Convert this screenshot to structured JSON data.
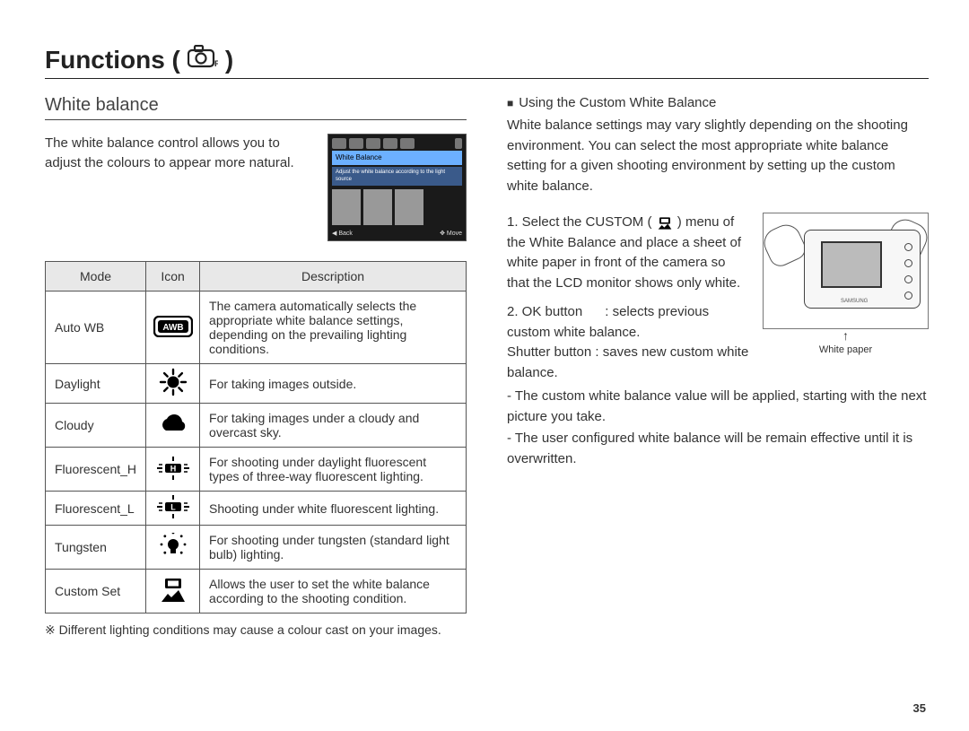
{
  "page": {
    "title": "Functions (",
    "title_close": ")",
    "number": "35"
  },
  "section": {
    "title": "White balance",
    "intro": "The white balance control allows you to adjust the colours to appear more natural.",
    "screenshot": {
      "header_label": "White Balance",
      "hint": "Adjust the white balance according to the light source",
      "back": "Back",
      "move": "Move"
    },
    "table": {
      "headers": {
        "mode": "Mode",
        "icon": "Icon",
        "desc": "Description"
      },
      "rows": [
        {
          "mode": "Auto WB",
          "icon": "awb",
          "desc": "The camera automatically selects the appropriate white balance settings, depending on the prevailing lighting conditions."
        },
        {
          "mode": "Daylight",
          "icon": "sun",
          "desc": "For taking images outside."
        },
        {
          "mode": "Cloudy",
          "icon": "cloud",
          "desc": "For taking images under a cloudy and overcast sky."
        },
        {
          "mode": "Fluorescent_H",
          "icon": "fluoH",
          "desc": "For shooting under daylight fluorescent types of three-way fluorescent lighting."
        },
        {
          "mode": "Fluorescent_L",
          "icon": "fluoL",
          "desc": "Shooting under white fluorescent lighting."
        },
        {
          "mode": "Tungsten",
          "icon": "bulb",
          "desc": "For shooting under tungsten (standard light bulb) lighting."
        },
        {
          "mode": "Custom Set",
          "icon": "custom",
          "desc": "Allows the user to set the white balance according to the shooting condition."
        }
      ]
    },
    "note": "※ Different lighting conditions may cause a colour cast on your images."
  },
  "right": {
    "heading": "Using the Custom White Balance",
    "intro": "White balance settings may vary slightly depending on the shooting environment. You can select the most appropriate white balance setting for a given shooting environment by setting up the custom white balance.",
    "step1_pre": "1. Select the CUSTOM (",
    "step1_post": ") menu of the White Balance and place a sheet of white paper in front of the camera so that the LCD monitor shows only white.",
    "step2_a": "2. OK button",
    "step2_b": ": selects previous custom white balance.",
    "step3": "Shutter button : saves new custom white balance.",
    "bullet1": "- The custom white balance value will be applied, starting with the next picture you take.",
    "bullet2": "- The user configured white balance will be remain effective until it is overwritten.",
    "figure_caption": "White paper"
  },
  "style": {
    "page_bg": "#ffffff",
    "text_color": "#333333",
    "rule_color": "#222222",
    "table_border": "#555555",
    "table_header_bg": "#e8e8e8",
    "icon_color": "#000000"
  }
}
